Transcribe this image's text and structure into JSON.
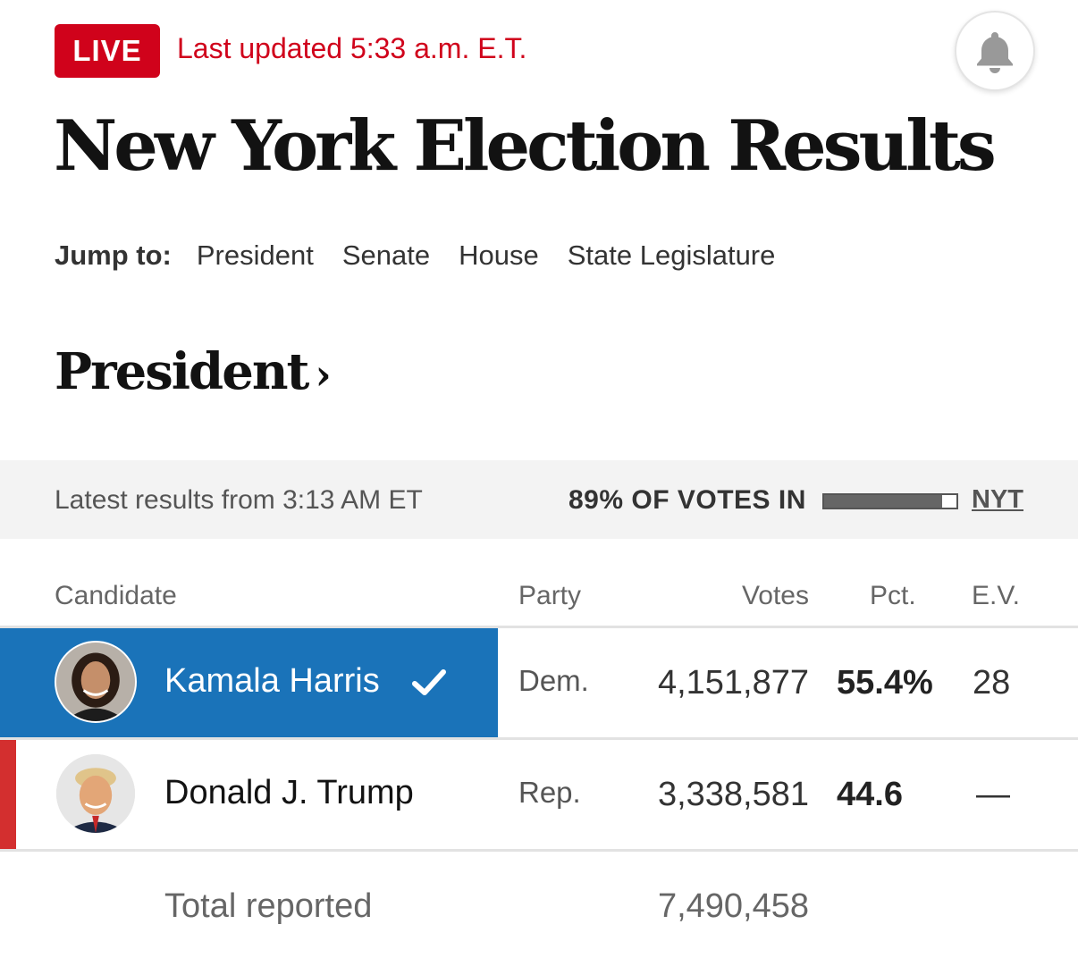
{
  "header": {
    "live_label": "LIVE",
    "last_updated": "Last updated 5:33 a.m. E.T.",
    "title": "New York Election Results",
    "bell_icon": "bell-icon"
  },
  "jump_nav": {
    "label": "Jump to:",
    "links": [
      "President",
      "Senate",
      "House",
      "State Legislature"
    ]
  },
  "section": {
    "title": "President",
    "chevron": "›"
  },
  "results_bar": {
    "latest": "Latest results from 3:13 AM ET",
    "votes_in": "89% OF VOTES IN",
    "progress_fraction": 0.89,
    "source_link": "NYT"
  },
  "table": {
    "headers": {
      "candidate": "Candidate",
      "party": "Party",
      "votes": "Votes",
      "pct": "Pct.",
      "ev": "E.V."
    },
    "rows": [
      {
        "name": "Kamala Harris",
        "party": "Dem.",
        "votes": "4,151,877",
        "pct": "55.4%",
        "ev": "28",
        "winner": true,
        "party_color": "#1a73b9"
      },
      {
        "name": "Donald J. Trump",
        "party": "Rep.",
        "votes": "3,338,581",
        "pct": "44.6",
        "ev": "—",
        "winner": false,
        "party_color": "#d32f2f"
      }
    ],
    "total_label": "Total reported",
    "total_votes": "7,490,458"
  },
  "colors": {
    "live_red": "#d0021b",
    "dem_blue": "#1a73b9",
    "rep_red": "#d32f2f"
  }
}
